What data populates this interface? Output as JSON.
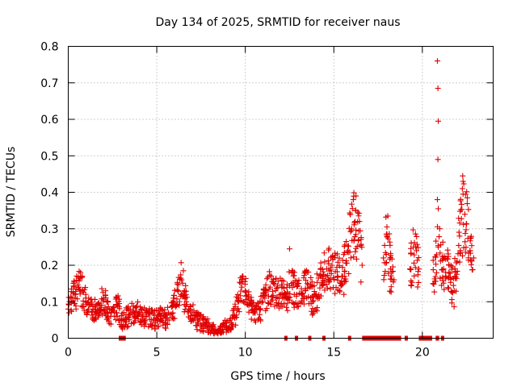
{
  "chart_data": {
    "type": "scatter",
    "title": "Day 134 of 2025, SRMTID for receiver naus",
    "xlabel": "GPS time / hours",
    "ylabel": "SRMTID / TECUs",
    "xlim": [
      0,
      24
    ],
    "ylim": [
      0,
      0.8
    ],
    "xticks": [
      0,
      5,
      10,
      15,
      20
    ],
    "yticks": [
      0,
      0.1,
      0.2,
      0.3,
      0.4,
      0.5,
      0.6,
      0.7,
      0.8
    ],
    "grid": true,
    "marker": "+",
    "color": "#e00000",
    "series_trend": [
      [
        0.0,
        0.08
      ],
      [
        0.2,
        0.11
      ],
      [
        0.4,
        0.12
      ],
      [
        0.6,
        0.14
      ],
      [
        0.8,
        0.13
      ],
      [
        1.0,
        0.11
      ],
      [
        1.2,
        0.09
      ],
      [
        1.4,
        0.08
      ],
      [
        1.6,
        0.07
      ],
      [
        1.8,
        0.09
      ],
      [
        2.0,
        0.11
      ],
      [
        2.2,
        0.08
      ],
      [
        2.4,
        0.06
      ],
      [
        2.6,
        0.07
      ],
      [
        2.8,
        0.09
      ],
      [
        3.0,
        0.05
      ],
      [
        3.2,
        0.05
      ],
      [
        3.6,
        0.07
      ],
      [
        4.0,
        0.07
      ],
      [
        4.4,
        0.06
      ],
      [
        4.8,
        0.05
      ],
      [
        5.2,
        0.06
      ],
      [
        5.6,
        0.05
      ],
      [
        6.0,
        0.09
      ],
      [
        6.2,
        0.13
      ],
      [
        6.4,
        0.16
      ],
      [
        6.6,
        0.11
      ],
      [
        6.8,
        0.08
      ],
      [
        7.0,
        0.07
      ],
      [
        7.3,
        0.05
      ],
      [
        7.6,
        0.04
      ],
      [
        7.9,
        0.03
      ],
      [
        8.2,
        0.02
      ],
      [
        8.5,
        0.02
      ],
      [
        8.8,
        0.03
      ],
      [
        9.1,
        0.03
      ],
      [
        9.4,
        0.06
      ],
      [
        9.6,
        0.11
      ],
      [
        9.8,
        0.14
      ],
      [
        10.0,
        0.13
      ],
      [
        10.2,
        0.09
      ],
      [
        10.5,
        0.07
      ],
      [
        10.8,
        0.08
      ],
      [
        11.1,
        0.11
      ],
      [
        11.4,
        0.14
      ],
      [
        11.7,
        0.13
      ],
      [
        12.0,
        0.12
      ],
      [
        12.3,
        0.11
      ],
      [
        12.6,
        0.15
      ],
      [
        12.9,
        0.12
      ],
      [
        13.2,
        0.12
      ],
      [
        13.5,
        0.15
      ],
      [
        13.8,
        0.1
      ],
      [
        14.0,
        0.12
      ],
      [
        14.3,
        0.17
      ],
      [
        14.6,
        0.19
      ],
      [
        14.9,
        0.2
      ],
      [
        15.2,
        0.17
      ],
      [
        15.5,
        0.17
      ],
      [
        15.8,
        0.24
      ],
      [
        16.0,
        0.3
      ],
      [
        16.2,
        0.32
      ],
      [
        16.4,
        0.27
      ],
      [
        16.6,
        0.2
      ],
      [
        17.8,
        0.22
      ],
      [
        18.0,
        0.28
      ],
      [
        18.2,
        0.19
      ],
      [
        18.4,
        0.16
      ],
      [
        19.3,
        0.19
      ],
      [
        19.5,
        0.25
      ],
      [
        19.8,
        0.19
      ],
      [
        20.6,
        0.15
      ],
      [
        20.9,
        0.25
      ],
      [
        21.2,
        0.19
      ],
      [
        21.5,
        0.18
      ],
      [
        21.8,
        0.13
      ],
      [
        22.1,
        0.28
      ],
      [
        22.4,
        0.34
      ],
      [
        22.7,
        0.24
      ],
      [
        22.9,
        0.22
      ]
    ],
    "spike_points": [
      [
        20.85,
        0.76
      ],
      [
        20.88,
        0.685
      ],
      [
        20.9,
        0.595
      ],
      [
        20.88,
        0.49
      ],
      [
        20.85,
        0.38
      ],
      [
        20.9,
        0.355
      ],
      [
        22.28,
        0.445
      ],
      [
        22.3,
        0.43
      ],
      [
        22.26,
        0.41
      ],
      [
        22.3,
        0.395
      ],
      [
        16.25,
        0.39
      ],
      [
        16.1,
        0.38
      ],
      [
        18.05,
        0.335
      ],
      [
        18.0,
        0.305
      ],
      [
        18.0,
        0.285
      ],
      [
        6.5,
        0.185
      ],
      [
        12.5,
        0.245
      ],
      [
        15.7,
        0.265
      ]
    ],
    "zero_segments": [
      [
        2.85,
        3.25
      ],
      [
        12.2,
        12.3
      ],
      [
        12.8,
        12.9
      ],
      [
        13.55,
        13.7
      ],
      [
        14.35,
        14.45
      ],
      [
        15.8,
        15.9
      ],
      [
        16.6,
        18.8
      ],
      [
        19.0,
        19.1
      ],
      [
        19.8,
        20.55
      ],
      [
        20.75,
        20.95
      ],
      [
        21.05,
        21.15
      ]
    ]
  }
}
